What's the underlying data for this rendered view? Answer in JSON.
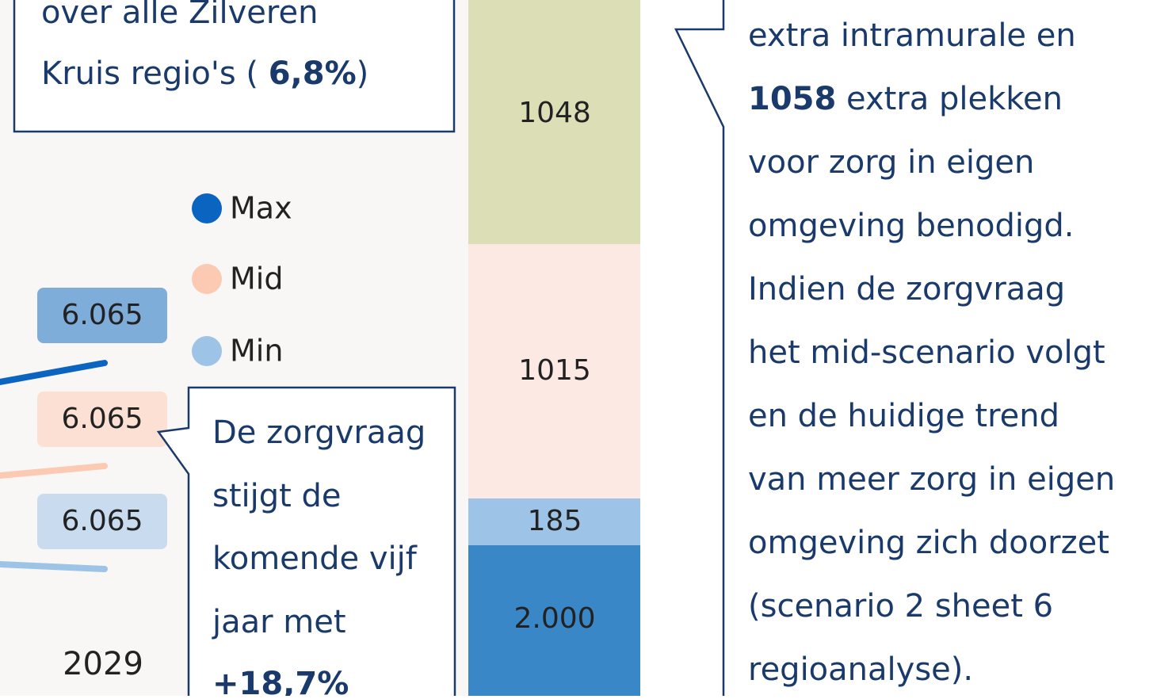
{
  "summary_box": {
    "lines": [
      "over alle Zilveren",
      "Kruis regio's ( "
    ],
    "bold": "6,8%",
    "tail": ")"
  },
  "legend": [
    "Max",
    "Mid",
    "Min"
  ],
  "line_labels": [
    "6.065",
    "6.065",
    "6.065"
  ],
  "year": "2029",
  "growth_callout": {
    "lines": [
      "De zorgvraag",
      "stijgt de",
      "komende vijf",
      "jaar met"
    ],
    "bold": "+18,7%"
  },
  "stacked_bar": {
    "segments": [
      "1048",
      "1015",
      "185",
      "2.000"
    ]
  },
  "text_callout": {
    "line_1": "extra intramurale en",
    "line_2_bold": "1058",
    "line_2_rest": " extra plekken",
    "lines": [
      "voor zorg in eigen",
      "omgeving benodigd.",
      "Indien de zorgvraag",
      "het mid-scenario volgt",
      "en de huidige trend",
      "van meer zorg in eigen",
      "omgeving zich doorzet",
      "(scenario 2 sheet 6",
      "regioanalyse)."
    ]
  }
}
